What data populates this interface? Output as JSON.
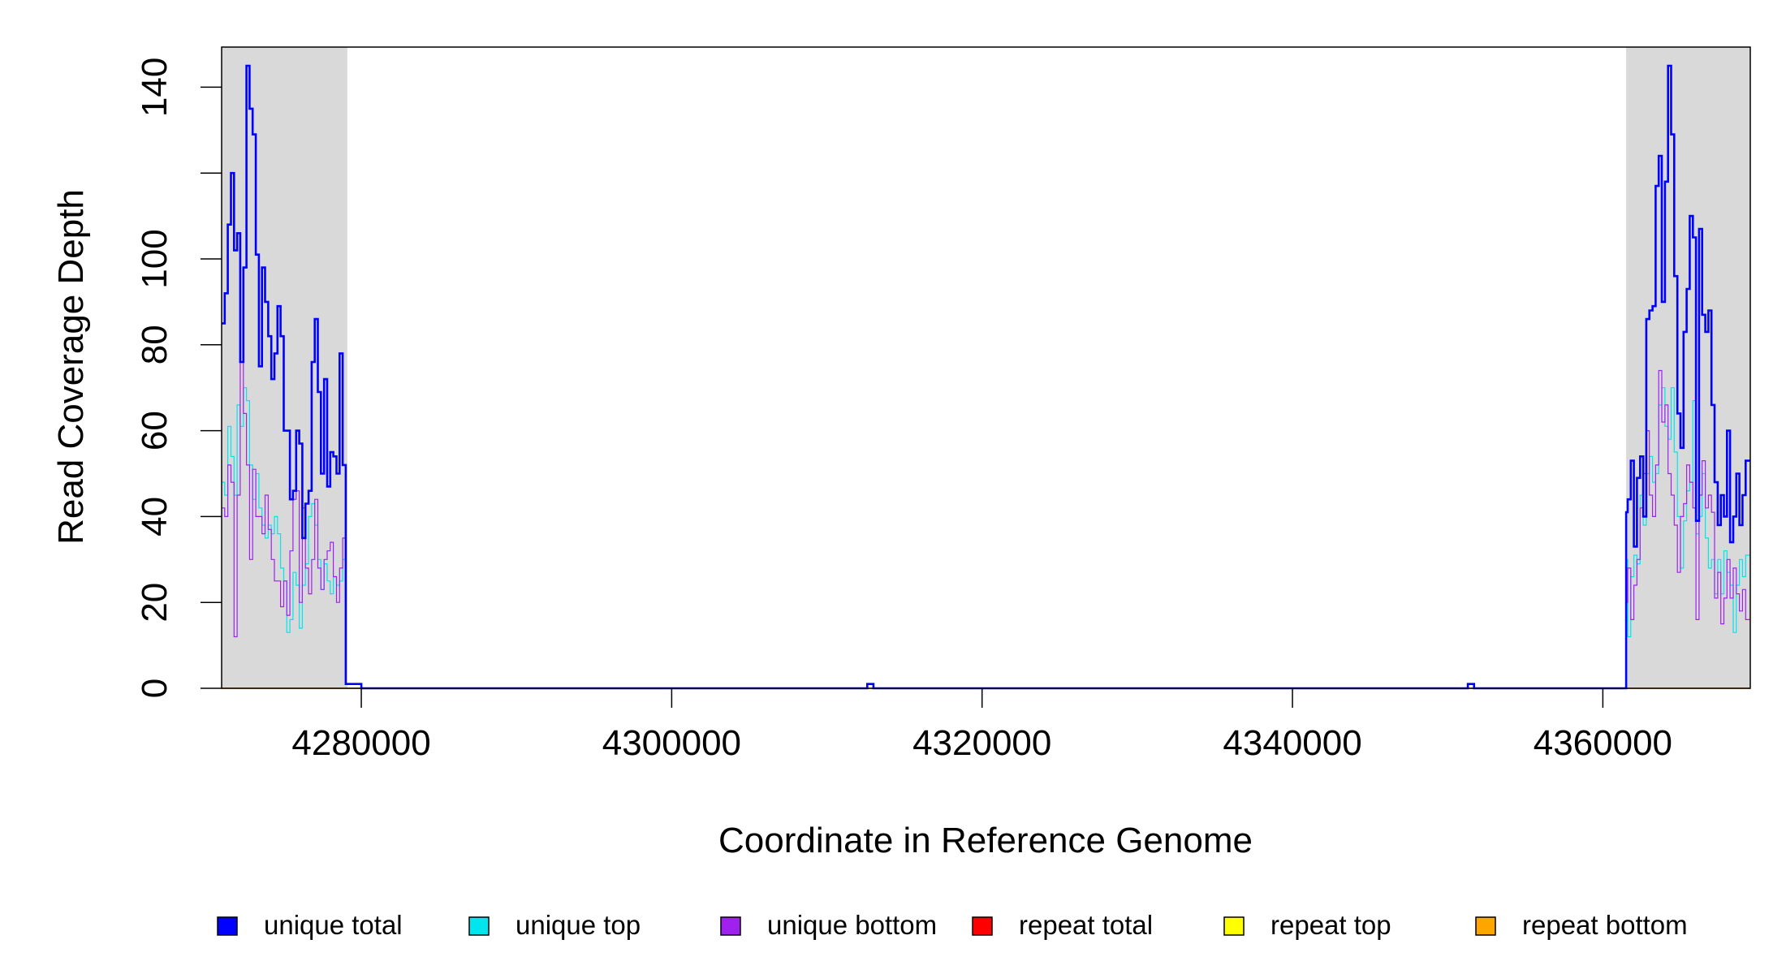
{
  "chart_data": {
    "type": "line",
    "step": true,
    "title": "",
    "xlabel": "Coordinate in Reference Genome",
    "ylabel": "Read Coverage Depth",
    "xlim": [
      4271000,
      4369500
    ],
    "ylim": [
      0,
      150
    ],
    "x_ticks": [
      4280000,
      4300000,
      4320000,
      4340000,
      4360000
    ],
    "x_tick_labels": [
      "4280000",
      "4300000",
      "4320000",
      "4340000",
      "4360000"
    ],
    "y_ticks": [
      0,
      20,
      40,
      60,
      80,
      100,
      120,
      140
    ],
    "y_tick_labels": [
      "0",
      "20",
      "40",
      "60",
      "80",
      "100",
      "",
      "140"
    ],
    "shaded_regions": [
      [
        4271000,
        4279100
      ],
      [
        4361500,
        4369500
      ]
    ],
    "shade_color": "#d9d9d9",
    "series": [
      {
        "name": "unique total",
        "color": "#0000ff",
        "width": 2.6,
        "x": [
          4271000,
          4271200,
          4271400,
          4271600,
          4271800,
          4272000,
          4272200,
          4272400,
          4272600,
          4272800,
          4273000,
          4273200,
          4273400,
          4273600,
          4273800,
          4274000,
          4274200,
          4274400,
          4274600,
          4274800,
          4275000,
          4275200,
          4275400,
          4275600,
          4275800,
          4276000,
          4276200,
          4276400,
          4276600,
          4276800,
          4277000,
          4277200,
          4277400,
          4277600,
          4277800,
          4278000,
          4278200,
          4278400,
          4278600,
          4278800,
          4279000,
          4279100,
          4279500,
          4280000,
          4312600,
          4312700,
          4313000,
          4351300,
          4351400,
          4351700,
          4361500,
          4361600,
          4361800,
          4362000,
          4362200,
          4362400,
          4362600,
          4362800,
          4363000,
          4363200,
          4363400,
          4363600,
          4363800,
          4364000,
          4364200,
          4364400,
          4364600,
          4364800,
          4365000,
          4365200,
          4365400,
          4365600,
          4365800,
          4366000,
          4366200,
          4366400,
          4366600,
          4366800,
          4367000,
          4367200,
          4367400,
          4367600,
          4367800,
          4368000,
          4368200,
          4368400,
          4368600,
          4368800,
          4369000,
          4369200,
          4369500
        ],
        "y": [
          85,
          92,
          108,
          120,
          102,
          106,
          76,
          98,
          145,
          135,
          129,
          101,
          75,
          98,
          90,
          82,
          72,
          78,
          89,
          82,
          60,
          60,
          44,
          46,
          60,
          57,
          35,
          43,
          46,
          76,
          86,
          69,
          50,
          72,
          47,
          55,
          54,
          50,
          78,
          52,
          1,
          1,
          1,
          0,
          1,
          1,
          0,
          1,
          1,
          0,
          41,
          44,
          53,
          33,
          49,
          54,
          40,
          86,
          88,
          89,
          117,
          124,
          90,
          118,
          145,
          129,
          96,
          64,
          56,
          83,
          93,
          110,
          105,
          39,
          107,
          87,
          83,
          88,
          66,
          48,
          38,
          45,
          40,
          60,
          34,
          40,
          50,
          38,
          45,
          53,
          53
        ]
      },
      {
        "name": "unique top",
        "color": "#00e5ee",
        "width": 1.2,
        "x": [
          4271000,
          4271200,
          4271400,
          4271600,
          4271800,
          4272000,
          4272200,
          4272400,
          4272600,
          4272800,
          4273000,
          4273200,
          4273400,
          4273600,
          4273800,
          4274000,
          4274200,
          4274400,
          4274600,
          4274800,
          4275000,
          4275200,
          4275400,
          4275600,
          4275800,
          4276000,
          4276200,
          4276400,
          4276600,
          4276800,
          4277000,
          4277200,
          4277400,
          4277600,
          4277800,
          4278000,
          4278200,
          4278400,
          4278600,
          4278800,
          4279000,
          4279100,
          4279500,
          4280000,
          4312600,
          4312700,
          4313000,
          4351300,
          4351400,
          4351700,
          4361500,
          4361600,
          4361800,
          4362000,
          4362200,
          4362400,
          4362600,
          4362800,
          4363000,
          4363200,
          4363400,
          4363600,
          4363800,
          4364000,
          4364200,
          4364400,
          4364600,
          4364800,
          4365000,
          4365200,
          4365400,
          4365600,
          4365800,
          4366000,
          4366200,
          4366400,
          4366600,
          4366800,
          4367000,
          4367200,
          4367400,
          4367600,
          4367800,
          4368000,
          4368200,
          4368400,
          4368600,
          4368800,
          4369000,
          4369200,
          4369500
        ],
        "y": [
          48,
          45,
          61,
          54,
          45,
          66,
          61,
          70,
          67,
          52,
          44,
          50,
          42,
          38,
          35,
          38,
          36,
          40,
          36,
          28,
          25,
          13,
          16,
          27,
          24,
          14,
          24,
          29,
          40,
          43,
          38,
          30,
          23,
          29,
          25,
          22,
          26,
          24,
          25,
          30,
          1,
          1,
          1,
          0,
          1,
          1,
          0,
          1,
          1,
          0,
          30,
          12,
          26,
          31,
          29,
          45,
          38,
          50,
          54,
          48,
          50,
          66,
          70,
          61,
          58,
          70,
          55,
          40,
          28,
          39,
          46,
          48,
          67,
          36,
          40,
          50,
          35,
          28,
          30,
          22,
          30,
          22,
          32,
          27,
          24,
          13,
          24,
          30,
          26,
          31,
          31
        ]
      },
      {
        "name": "unique bottom",
        "color": "#a020f0",
        "width": 1.2,
        "x": [
          4271000,
          4271200,
          4271400,
          4271600,
          4271800,
          4272000,
          4272200,
          4272400,
          4272600,
          4272800,
          4273000,
          4273200,
          4273400,
          4273600,
          4273800,
          4274000,
          4274200,
          4274400,
          4274600,
          4274800,
          4275000,
          4275200,
          4275400,
          4275600,
          4275800,
          4276000,
          4276200,
          4276400,
          4276600,
          4276800,
          4277000,
          4277200,
          4277400,
          4277600,
          4277800,
          4278000,
          4278200,
          4278400,
          4278600,
          4278800,
          4279000,
          4279100,
          4279500,
          4280000,
          4312600,
          4312700,
          4313000,
          4351300,
          4351400,
          4351700,
          4361500,
          4361600,
          4361800,
          4362000,
          4362200,
          4362400,
          4362600,
          4362800,
          4363000,
          4363200,
          4363400,
          4363600,
          4363800,
          4364000,
          4364200,
          4364400,
          4364600,
          4364800,
          4365000,
          4365200,
          4365400,
          4365600,
          4365800,
          4366000,
          4366200,
          4366400,
          4366600,
          4366800,
          4367000,
          4367200,
          4367400,
          4367600,
          4367800,
          4368000,
          4368200,
          4368400,
          4368600,
          4368800,
          4369000,
          4369200,
          4369500
        ],
        "y": [
          42,
          40,
          52,
          48,
          12,
          45,
          76,
          64,
          52,
          30,
          51,
          40,
          40,
          36,
          45,
          37,
          30,
          25,
          25,
          19,
          25,
          17,
          32,
          44,
          46,
          20,
          42,
          28,
          22,
          30,
          44,
          28,
          23,
          30,
          32,
          34,
          26,
          20,
          28,
          35,
          1,
          1,
          1,
          0,
          1,
          1,
          0,
          1,
          1,
          0,
          20,
          28,
          16,
          24,
          30,
          42,
          50,
          60,
          45,
          40,
          52,
          74,
          62,
          66,
          50,
          45,
          38,
          27,
          40,
          43,
          52,
          48,
          42,
          16,
          45,
          53,
          42,
          45,
          41,
          21,
          27,
          15,
          21,
          30,
          21,
          28,
          22,
          18,
          23,
          16,
          16
        ]
      },
      {
        "name": "repeat total",
        "color": "#ff0000",
        "width": 1.2,
        "x": [
          4271000,
          4369500
        ],
        "y": [
          0,
          0
        ]
      },
      {
        "name": "repeat top",
        "color": "#ffff00",
        "width": 1.2,
        "x": [
          4271000,
          4369500
        ],
        "y": [
          0,
          0
        ]
      },
      {
        "name": "repeat bottom",
        "color": "#ffa500",
        "width": 1.6,
        "x": [
          4271000,
          4369500
        ],
        "y": [
          0,
          0
        ]
      }
    ],
    "legend": {
      "placement": "bottom",
      "entries": [
        {
          "label": "unique total",
          "color": "#0000ff"
        },
        {
          "label": "unique top",
          "color": "#00e5ee"
        },
        {
          "label": "unique bottom",
          "color": "#a020f0"
        },
        {
          "label": "repeat total",
          "color": "#ff0000"
        },
        {
          "label": "repeat top",
          "color": "#ffff00"
        },
        {
          "label": "repeat bottom",
          "color": "#ffa500"
        }
      ]
    }
  }
}
